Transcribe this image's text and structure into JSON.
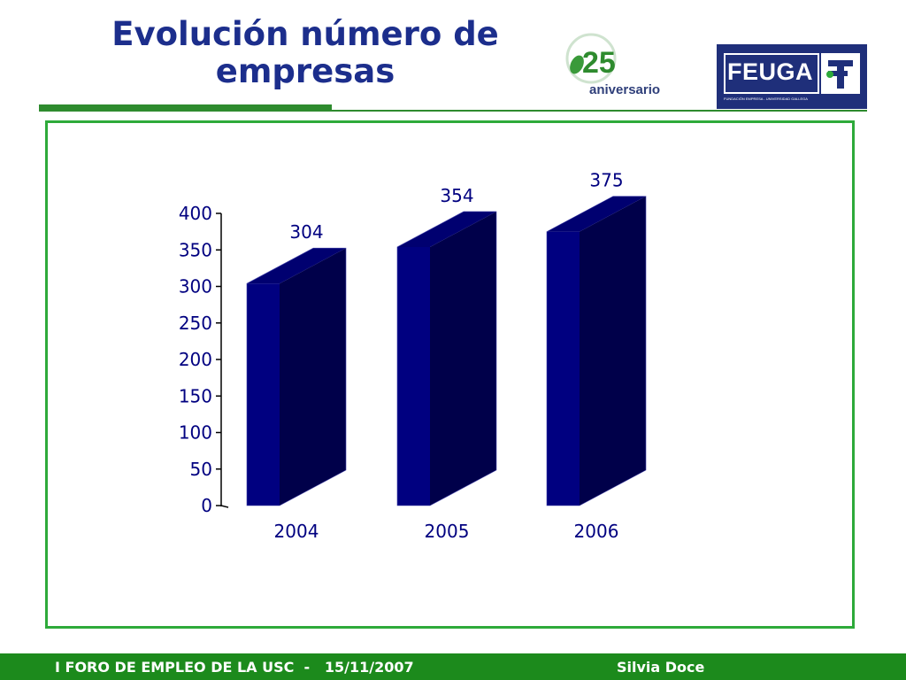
{
  "header": {
    "title_line1": "Evolución número de",
    "title_line2": "empresas",
    "anniversary_number": "25",
    "anniversary_label": "aniversario",
    "logo_text": "FEUGA",
    "logo_subtitle": "FUNDACIÓN EMPRESA - UNIVERSIDAD GALLEGA"
  },
  "colors": {
    "title": "#1c2e8c",
    "accent_green": "#2e8b2e",
    "frame_green": "#2eaa3a",
    "bar_front": "#000080",
    "bar_side": "#00004a",
    "bar_top": "#000070",
    "footer_bg": "#1c8a1c"
  },
  "chart_data": {
    "type": "bar",
    "style": "3d-column",
    "categories": [
      "2004",
      "2005",
      "2006"
    ],
    "values": [
      304,
      354,
      375
    ],
    "data_labels": [
      "304",
      "354",
      "375"
    ],
    "ylim": [
      0,
      400
    ],
    "yticks": [
      0,
      50,
      100,
      150,
      200,
      250,
      300,
      350,
      400
    ],
    "ytick_labels": [
      "0",
      "50",
      "100",
      "150",
      "200",
      "250",
      "300",
      "350",
      "400"
    ],
    "grid": false,
    "legend": "none"
  },
  "footer": {
    "left_text": "I FORO DE EMPLEO DE LA USC  -   15/11/2007",
    "right_text": "Silvia Doce"
  }
}
